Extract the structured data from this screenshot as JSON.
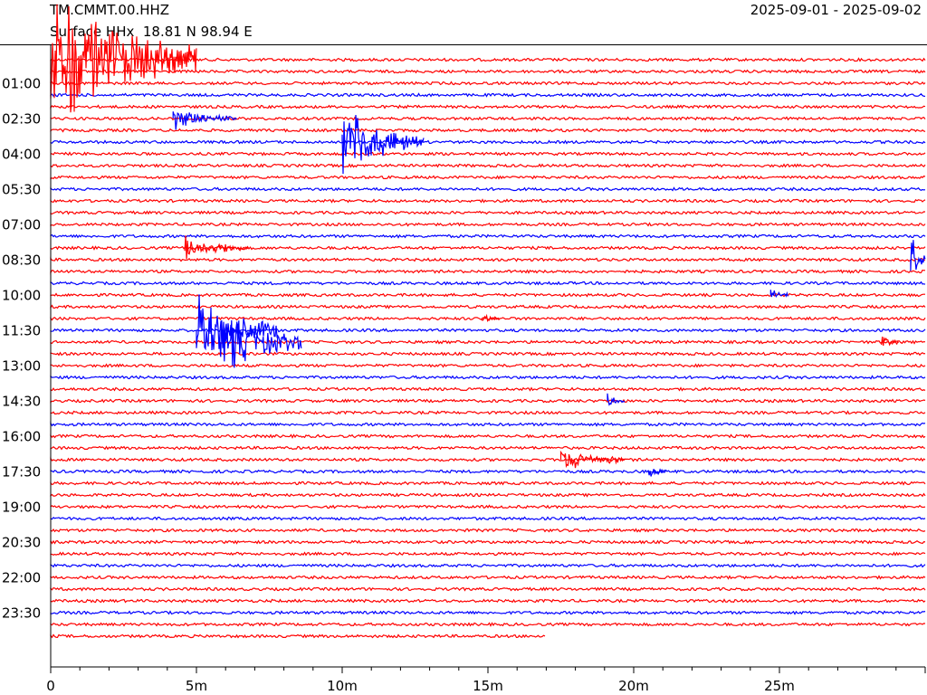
{
  "header": {
    "station": "TM.CMMT.00.HHZ",
    "subtitle": "Surface HHx  18.81 N 98.94 E",
    "date_range": "2025-09-01 - 2025-09-02"
  },
  "chart_data": {
    "type": "line",
    "subtype": "helicorder",
    "title": "TM.CMMT.00.HHZ",
    "xlabel": "",
    "ylabel": "",
    "xlim": [
      0,
      30
    ],
    "x_unit": "minutes",
    "x_ticks": [
      {
        "value": 0,
        "label": "0"
      },
      {
        "value": 5,
        "label": "5m"
      },
      {
        "value": 10,
        "label": "10m"
      },
      {
        "value": 15,
        "label": "15m"
      },
      {
        "value": 20,
        "label": "20m"
      },
      {
        "value": 25,
        "label": "25m"
      }
    ],
    "y_ticks": [
      "01:00",
      "02:30",
      "04:00",
      "05:30",
      "07:00",
      "08:30",
      "10:00",
      "11:30",
      "13:00",
      "14:30",
      "16:00",
      "17:30",
      "19:00",
      "20:30",
      "22:00",
      "23:30"
    ],
    "line_interval_minutes": 30,
    "line_colors": [
      "#ff0000",
      "#ff0000",
      "#ff0000",
      "#0000ff"
    ],
    "last_line_end_minutes": 17,
    "events": [
      {
        "time": "00:00",
        "minute": 0.0,
        "amplitude": "very large",
        "color": "#ff0000"
      },
      {
        "time": "02:30",
        "minute": 4.2,
        "amplitude": "medium",
        "color": "#0000ff"
      },
      {
        "time": "03:30",
        "minute": 10.0,
        "amplitude": "large",
        "color": "#0000ff"
      },
      {
        "time": "08:00",
        "minute": 4.6,
        "amplitude": "medium",
        "color": "#ff0000"
      },
      {
        "time": "08:30",
        "minute": 29.5,
        "amplitude": "large",
        "color": "#0000ff"
      },
      {
        "time": "10:00",
        "minute": 24.7,
        "amplitude": "small",
        "color": "#0000ff"
      },
      {
        "time": "11:00",
        "minute": 14.8,
        "amplitude": "small",
        "color": "#ff0000"
      },
      {
        "time": "11:30",
        "minute": 5.0,
        "amplitude": "large",
        "color": "#0000ff"
      },
      {
        "time": "12:00",
        "minute": 5.8,
        "amplitude": "large",
        "color": "#0000ff"
      },
      {
        "time": "12:00",
        "minute": 28.5,
        "amplitude": "small",
        "color": "#ff0000"
      },
      {
        "time": "14:30",
        "minute": 19.1,
        "amplitude": "small",
        "color": "#0000ff"
      },
      {
        "time": "17:00",
        "minute": 17.5,
        "amplitude": "medium",
        "color": "#ff0000"
      },
      {
        "time": "17:30",
        "minute": 20.5,
        "amplitude": "small",
        "color": "#0000ff"
      }
    ],
    "grid": false,
    "legend": "none"
  }
}
